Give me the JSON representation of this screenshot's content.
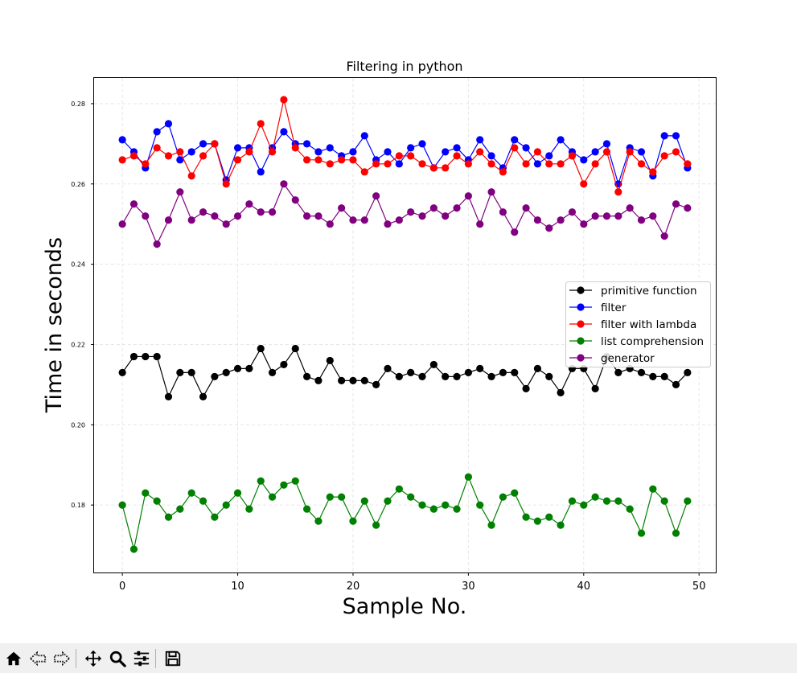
{
  "chart_data": {
    "type": "line",
    "title": "Filtering in python",
    "xlabel": "Sample No.",
    "ylabel": "Time in seconds",
    "xlim": [
      -2.45,
      51.45
    ],
    "ylim": [
      0.1632,
      0.2864
    ],
    "xticks": [
      0,
      10,
      20,
      30,
      40,
      50
    ],
    "xtick_labels": [
      "0",
      "10",
      "20",
      "30",
      "40",
      "50"
    ],
    "yticks": [
      0.18,
      0.2,
      0.22,
      0.24,
      0.26,
      0.28
    ],
    "ytick_labels": [
      "0.18",
      "0.20",
      "0.22",
      "0.24",
      "0.26",
      "0.28"
    ],
    "grid": true,
    "legend_position": "center-right",
    "series": [
      {
        "name": "primitive function",
        "color": "#000000",
        "values": [
          0.213,
          0.217,
          0.217,
          0.217,
          0.207,
          0.213,
          0.213,
          0.207,
          0.212,
          0.213,
          0.214,
          0.214,
          0.219,
          0.213,
          0.215,
          0.219,
          0.212,
          0.211,
          0.216,
          0.211,
          0.211,
          0.211,
          0.21,
          0.214,
          0.212,
          0.213,
          0.212,
          0.215,
          0.212,
          0.212,
          0.213,
          0.214,
          0.212,
          0.213,
          0.213,
          0.209,
          0.214,
          0.212,
          0.208,
          0.214,
          0.214,
          0.209,
          0.217,
          0.213,
          0.214,
          0.213,
          0.212,
          0.212,
          0.21,
          0.213
        ]
      },
      {
        "name": "filter",
        "color": "#0000ff",
        "values": [
          0.271,
          0.268,
          0.264,
          0.273,
          0.275,
          0.266,
          0.268,
          0.27,
          0.27,
          0.261,
          0.269,
          0.269,
          0.263,
          0.269,
          0.273,
          0.27,
          0.27,
          0.268,
          0.269,
          0.267,
          0.268,
          0.272,
          0.266,
          0.268,
          0.265,
          0.269,
          0.27,
          0.264,
          0.268,
          0.269,
          0.266,
          0.271,
          0.267,
          0.264,
          0.271,
          0.269,
          0.265,
          0.267,
          0.271,
          0.268,
          0.266,
          0.268,
          0.27,
          0.26,
          0.269,
          0.268,
          0.262,
          0.272,
          0.272,
          0.264
        ]
      },
      {
        "name": "filter with lambda",
        "color": "#ff0000",
        "values": [
          0.266,
          0.267,
          0.265,
          0.269,
          0.267,
          0.268,
          0.262,
          0.267,
          0.27,
          0.26,
          0.266,
          0.268,
          0.275,
          0.268,
          0.281,
          0.269,
          0.266,
          0.266,
          0.265,
          0.266,
          0.266,
          0.263,
          0.265,
          0.265,
          0.267,
          0.267,
          0.265,
          0.264,
          0.264,
          0.267,
          0.265,
          0.268,
          0.265,
          0.263,
          0.269,
          0.265,
          0.268,
          0.265,
          0.265,
          0.267,
          0.26,
          0.265,
          0.268,
          0.258,
          0.268,
          0.265,
          0.263,
          0.267,
          0.268,
          0.265
        ]
      },
      {
        "name": "list comprehension",
        "color": "#008000",
        "values": [
          0.18,
          0.169,
          0.183,
          0.181,
          0.177,
          0.179,
          0.183,
          0.181,
          0.177,
          0.18,
          0.183,
          0.179,
          0.186,
          0.182,
          0.185,
          0.186,
          0.179,
          0.176,
          0.182,
          0.182,
          0.176,
          0.181,
          0.175,
          0.181,
          0.184,
          0.182,
          0.18,
          0.179,
          0.18,
          0.179,
          0.187,
          0.18,
          0.175,
          0.182,
          0.183,
          0.177,
          0.176,
          0.177,
          0.175,
          0.181,
          0.18,
          0.182,
          0.181,
          0.181,
          0.179,
          0.173,
          0.184,
          0.181,
          0.173,
          0.181
        ]
      },
      {
        "name": "generator",
        "color": "#800080",
        "values": [
          0.25,
          0.255,
          0.252,
          0.245,
          0.251,
          0.258,
          0.251,
          0.253,
          0.252,
          0.25,
          0.252,
          0.255,
          0.253,
          0.253,
          0.26,
          0.256,
          0.252,
          0.252,
          0.25,
          0.254,
          0.251,
          0.251,
          0.257,
          0.25,
          0.251,
          0.253,
          0.252,
          0.254,
          0.252,
          0.254,
          0.257,
          0.25,
          0.258,
          0.253,
          0.248,
          0.254,
          0.251,
          0.249,
          0.251,
          0.253,
          0.25,
          0.252,
          0.252,
          0.252,
          0.254,
          0.251,
          0.252,
          0.247,
          0.255,
          0.254
        ]
      }
    ]
  },
  "toolbar": {
    "icons": [
      "home-icon",
      "back-icon",
      "forward-icon",
      "pan-icon",
      "zoom-icon",
      "configure-icon",
      "save-icon"
    ]
  }
}
